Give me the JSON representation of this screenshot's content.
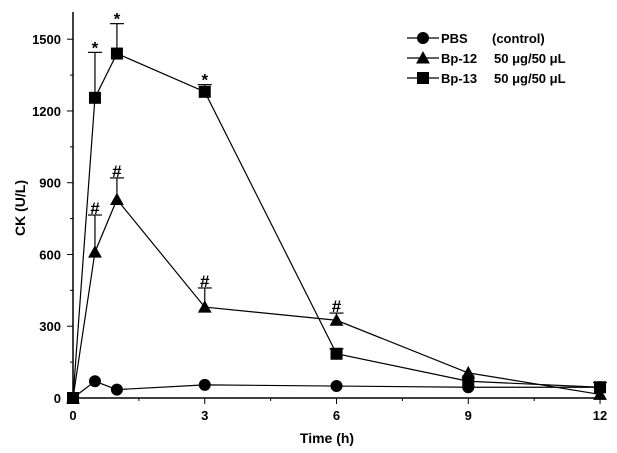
{
  "chart_data": {
    "type": "line",
    "xlabel": "Time (h)",
    "ylabel": "CK (U/L)",
    "xlim": [
      0,
      12
    ],
    "ylim": [
      0,
      1600
    ],
    "xticks": [
      0,
      3,
      6,
      9,
      12
    ],
    "yticks": [
      0,
      300,
      600,
      900,
      1200,
      1500
    ],
    "grid": false,
    "legend_position": "top-right",
    "series": [
      {
        "name": "PBS",
        "name_suffix": "(control)",
        "marker": "circle",
        "x": [
          0,
          0.5,
          1,
          3,
          6,
          9,
          12
        ],
        "y": [
          0,
          70,
          35,
          55,
          50,
          45,
          45
        ],
        "err": [
          0,
          0,
          0,
          0,
          0,
          0,
          0
        ],
        "annotations": []
      },
      {
        "name": "Bp-12",
        "name_suffix": "50 μg/50 μL",
        "marker": "triangle",
        "x": [
          0,
          0.5,
          1,
          3,
          6,
          9,
          12
        ],
        "y": [
          0,
          610,
          830,
          380,
          325,
          105,
          15
        ],
        "err": [
          0,
          155,
          90,
          80,
          30,
          0,
          0
        ],
        "annotations": [
          {
            "x": 0.5,
            "text": "#"
          },
          {
            "x": 1,
            "text": "#"
          },
          {
            "x": 3,
            "text": "#"
          },
          {
            "x": 6,
            "text": "#"
          }
        ]
      },
      {
        "name": "Bp-13",
        "name_suffix": "50 μg/50 μL",
        "marker": "square",
        "x": [
          0,
          0.5,
          1,
          3,
          6,
          9,
          12
        ],
        "y": [
          0,
          1255,
          1440,
          1280,
          185,
          70,
          45
        ],
        "err": [
          0,
          190,
          125,
          30,
          20,
          0,
          20
        ],
        "annotations": [
          {
            "x": 0.5,
            "text": "*"
          },
          {
            "x": 1,
            "text": "*"
          },
          {
            "x": 3,
            "text": "*"
          }
        ]
      }
    ]
  }
}
